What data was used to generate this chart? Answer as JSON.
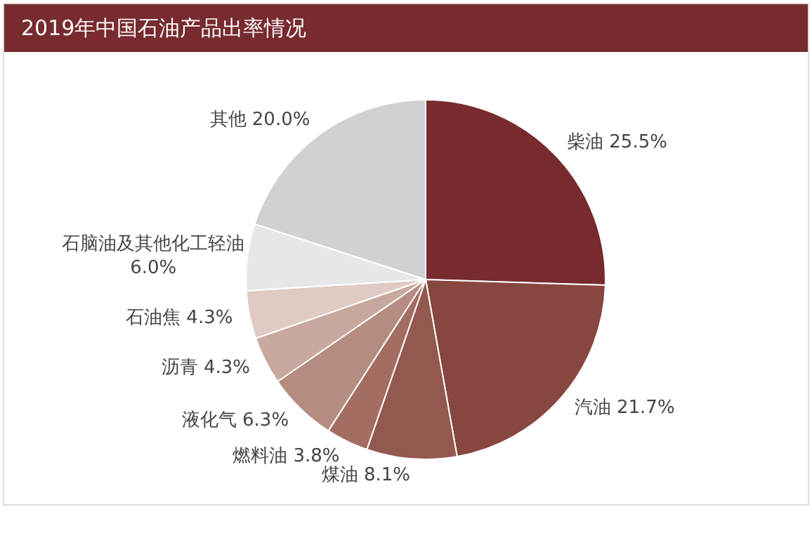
{
  "chart_data": {
    "type": "pie",
    "title": "2019年中国石油产品出率情况",
    "categories": [
      "柴油",
      "汽油",
      "煤油",
      "燃料油",
      "液化气",
      "沥青",
      "石油焦",
      "石脑油及其他化工轻油",
      "其他"
    ],
    "values": [
      25.5,
      21.7,
      8.1,
      3.8,
      6.3,
      4.3,
      4.3,
      6.0,
      20.0
    ],
    "value_labels": [
      "25.5%",
      "21.7%",
      "8.1%",
      "3.8%",
      "6.3%",
      "4.3%",
      "4.3%",
      "6.0%",
      "20.0%"
    ],
    "colors": [
      "#772b2f",
      "#87463f",
      "#93584e",
      "#a36d62",
      "#b58c80",
      "#c8a89e",
      "#dfcbc4",
      "#e7e7e9",
      "#d1d1d3"
    ]
  }
}
